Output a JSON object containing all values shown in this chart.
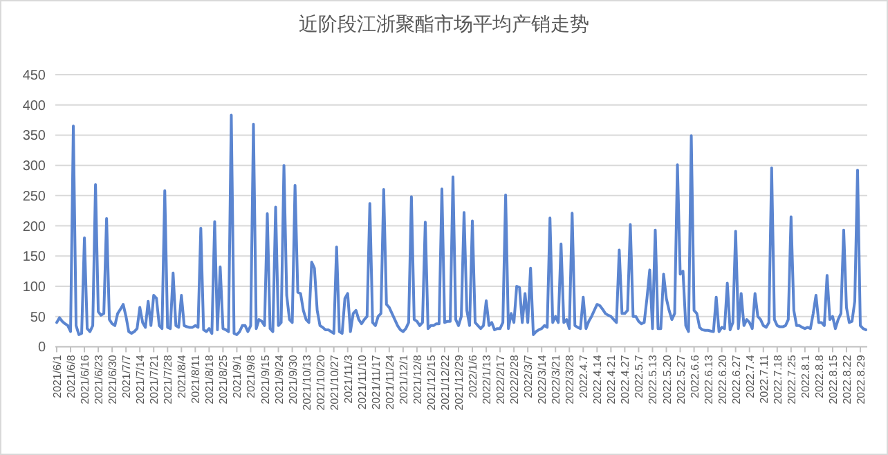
{
  "chart_data": {
    "type": "line",
    "title": "近阶段江浙聚酯市场平均产销走势",
    "categories": [
      "2021/6/1",
      null,
      null,
      null,
      null,
      "2021/6/8",
      null,
      null,
      null,
      null,
      "2021/6/16",
      null,
      null,
      null,
      null,
      "2021/6/23",
      null,
      null,
      null,
      null,
      "2021/6/30",
      null,
      null,
      null,
      null,
      "2021/7/7",
      null,
      null,
      null,
      null,
      "2021/7/14",
      null,
      null,
      null,
      null,
      "2021/7/21",
      null,
      null,
      null,
      null,
      "2021/7/28",
      null,
      null,
      null,
      null,
      "2021/8/4",
      null,
      null,
      null,
      null,
      "2021/8/11",
      null,
      null,
      null,
      null,
      "2021/8/18",
      null,
      null,
      null,
      null,
      "2021/8/25",
      null,
      null,
      null,
      null,
      "2021/9/1",
      null,
      null,
      null,
      null,
      "2021/9/8",
      null,
      null,
      null,
      null,
      "2021/9/15",
      null,
      null,
      null,
      null,
      "2021/9/24",
      null,
      null,
      null,
      null,
      "2021/9/30",
      null,
      null,
      null,
      null,
      "2021/10/13",
      null,
      null,
      null,
      null,
      "2021/10/20",
      null,
      null,
      null,
      null,
      "2021/10/27",
      null,
      null,
      null,
      null,
      "2021/11/3",
      null,
      null,
      null,
      null,
      "2021/11/10",
      null,
      null,
      null,
      null,
      "2021/11/17",
      null,
      null,
      null,
      null,
      "2021/11/24",
      null,
      null,
      null,
      null,
      "2021/12/1",
      null,
      null,
      null,
      null,
      "2021/12/8",
      null,
      null,
      null,
      null,
      "2021/12/15",
      null,
      null,
      null,
      null,
      "2021/12/22",
      null,
      null,
      null,
      null,
      "2021/12/29",
      null,
      null,
      null,
      null,
      "2022/1/6",
      null,
      null,
      null,
      null,
      "2022/1/13",
      null,
      null,
      null,
      null,
      "2022/2/17",
      null,
      null,
      null,
      null,
      "2022/2/28",
      null,
      null,
      null,
      null,
      "2022/3/7",
      null,
      null,
      null,
      null,
      "2022/3/14",
      null,
      null,
      null,
      null,
      "2022/3/21",
      null,
      null,
      null,
      null,
      "2022/3/28",
      null,
      null,
      null,
      null,
      "2022.4.7",
      null,
      null,
      null,
      null,
      "2022.4.14",
      null,
      null,
      null,
      null,
      "2022.4.21",
      null,
      null,
      null,
      null,
      "2022.4.27",
      null,
      null,
      null,
      null,
      "2022.5.7",
      null,
      null,
      null,
      null,
      "2022.5.13",
      null,
      null,
      null,
      null,
      "2022.5.20",
      null,
      null,
      null,
      null,
      "2022.5.27",
      null,
      null,
      null,
      null,
      "2022.6.6",
      null,
      null,
      null,
      null,
      "2022.6.13",
      null,
      null,
      null,
      null,
      "2022.6.20",
      null,
      null,
      null,
      null,
      "2022.6.27",
      null,
      null,
      null,
      null,
      "2022.7.4",
      null,
      null,
      null,
      null,
      "2022.7.11",
      null,
      null,
      null,
      null,
      "2022.7.18",
      null,
      null,
      null,
      null,
      "2022.7.25",
      null,
      null,
      null,
      null,
      "2022.8.1",
      null,
      null,
      null,
      null,
      "2022.8.8",
      null,
      null,
      null,
      null,
      "2022.8.15",
      null,
      null,
      null,
      null,
      "2022.8.22",
      null,
      null,
      null,
      null,
      "2022.8.29",
      null,
      null
    ],
    "values": [
      40,
      48,
      42,
      38,
      35,
      25,
      365,
      35,
      20,
      22,
      180,
      30,
      25,
      35,
      268,
      58,
      52,
      55,
      212,
      45,
      38,
      35,
      55,
      62,
      70,
      50,
      25,
      22,
      25,
      30,
      65,
      40,
      32,
      75,
      35,
      85,
      80,
      35,
      30,
      258,
      32,
      30,
      122,
      35,
      32,
      85,
      35,
      33,
      32,
      32,
      35,
      32,
      196,
      28,
      25,
      30,
      22,
      207,
      28,
      132,
      30,
      28,
      25,
      383,
      22,
      20,
      25,
      35,
      35,
      25,
      35,
      368,
      30,
      45,
      42,
      35,
      220,
      30,
      25,
      231,
      35,
      40,
      300,
      85,
      45,
      40,
      267,
      90,
      88,
      60,
      45,
      40,
      140,
      130,
      60,
      35,
      32,
      28,
      28,
      25,
      22,
      165,
      25,
      22,
      80,
      88,
      25,
      55,
      60,
      45,
      38,
      45,
      50,
      237,
      40,
      35,
      50,
      55,
      260,
      70,
      65,
      55,
      45,
      35,
      28,
      25,
      30,
      40,
      248,
      45,
      42,
      35,
      40,
      206,
      30,
      35,
      35,
      38,
      38,
      261,
      40,
      42,
      42,
      281,
      45,
      35,
      50,
      222,
      60,
      35,
      208,
      40,
      35,
      30,
      35,
      76,
      35,
      40,
      28,
      30,
      30,
      40,
      251,
      30,
      55,
      40,
      100,
      98,
      40,
      88,
      40,
      130,
      20,
      25,
      28,
      30,
      35,
      32,
      213,
      40,
      50,
      40,
      170,
      40,
      45,
      30,
      221,
      35,
      32,
      30,
      82,
      30,
      42,
      50,
      60,
      70,
      68,
      62,
      55,
      52,
      50,
      45,
      40,
      160,
      55,
      55,
      60,
      202,
      50,
      50,
      42,
      38,
      40,
      80,
      127,
      30,
      193,
      30,
      30,
      120,
      80,
      60,
      45,
      55,
      301,
      120,
      125,
      35,
      25,
      349,
      60,
      55,
      32,
      28,
      27,
      27,
      26,
      25,
      82,
      25,
      32,
      30,
      105,
      28,
      40,
      191,
      30,
      88,
      35,
      45,
      40,
      30,
      88,
      50,
      45,
      35,
      32,
      40,
      296,
      45,
      35,
      33,
      33,
      35,
      45,
      215,
      60,
      35,
      35,
      32,
      30,
      32,
      30,
      55,
      85,
      40,
      40,
      35,
      118,
      45,
      50,
      30,
      45,
      55,
      193,
      65,
      40,
      42,
      75,
      292,
      35,
      30,
      28
    ],
    "color": "#5b85d0",
    "ylim": [
      0,
      450
    ],
    "yticks": [
      0,
      50,
      100,
      150,
      200,
      250,
      300,
      350,
      400,
      450
    ],
    "grid": "y"
  }
}
